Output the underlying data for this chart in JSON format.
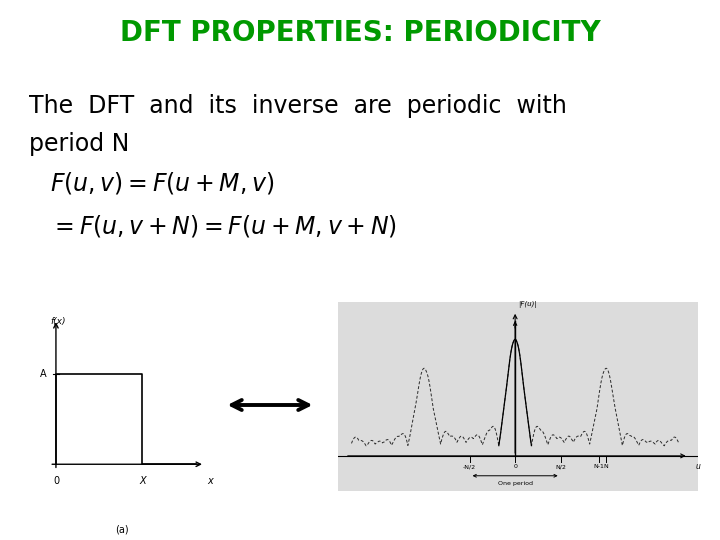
{
  "title": "DFT PROPERTIES: PERIODICITY",
  "title_color": "#009900",
  "title_fontsize": 20,
  "body_text_line1": "The  DFT  and  its  inverse  are  periodic  with",
  "body_text_line2": "period N",
  "body_fontsize": 17,
  "formula1": "$F(u,v) = F(u+M,v)$",
  "formula2": "$= F(u,v+N) = F(u+M,v+N)$",
  "formula_fontsize": 17,
  "bg_color": "#ffffff",
  "text_color": "#000000",
  "arrow_color": "#000000",
  "left_plot_bg": "#ffffff",
  "right_plot_bg": "#dcdcdc"
}
